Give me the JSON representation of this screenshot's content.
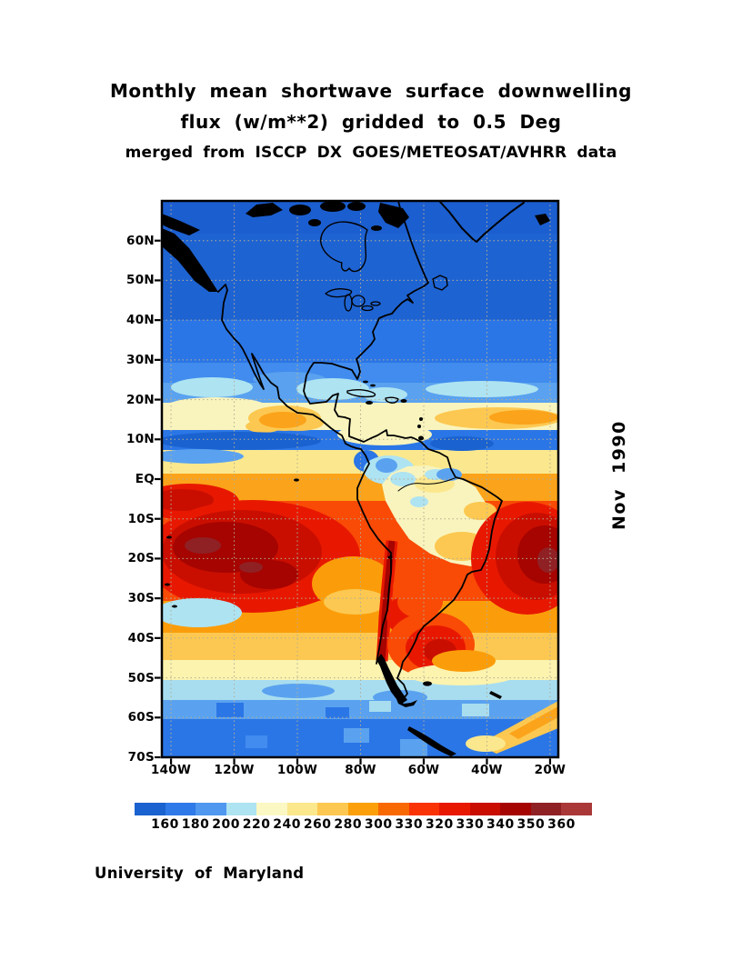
{
  "title": {
    "line1": "Monthly mean shortwave surface downwelling",
    "line2": "flux (w/m**2) gridded to 0.5 Deg",
    "line3": "merged from ISCCP DX GOES/METEOSAT/AVHRR data"
  },
  "side_label": "Nov 1990",
  "credit": "University of Maryland",
  "map": {
    "lat_ticks": [
      {
        "label": "60N",
        "deg": 60
      },
      {
        "label": "50N",
        "deg": 50
      },
      {
        "label": "40N",
        "deg": 40
      },
      {
        "label": "30N",
        "deg": 30
      },
      {
        "label": "20N",
        "deg": 20
      },
      {
        "label": "10N",
        "deg": 10
      },
      {
        "label": "EQ",
        "deg": 0
      },
      {
        "label": "10S",
        "deg": -10
      },
      {
        "label": "20S",
        "deg": -20
      },
      {
        "label": "30S",
        "deg": -30
      },
      {
        "label": "40S",
        "deg": -40
      },
      {
        "label": "50S",
        "deg": -50
      },
      {
        "label": "60S",
        "deg": -60
      },
      {
        "label": "70S",
        "deg": -70
      }
    ],
    "lon_ticks": [
      {
        "label": "140W",
        "deg": 140
      },
      {
        "label": "120W",
        "deg": 120
      },
      {
        "label": "100W",
        "deg": 100
      },
      {
        "label": "80W",
        "deg": 80
      },
      {
        "label": "60W",
        "deg": 60
      },
      {
        "label": "40W",
        "deg": 40
      },
      {
        "label": "20W",
        "deg": 20
      }
    ]
  },
  "colorbar": {
    "tick_labels": [
      "160",
      "180",
      "200",
      "220",
      "240",
      "260",
      "280",
      "300",
      "330",
      "320",
      "330",
      "340",
      "350",
      "360"
    ],
    "colors": [
      "#1a62cf",
      "#2e7ae8",
      "#4f97ef",
      "#aee3f2",
      "#fbf8c3",
      "#fbe78c",
      "#fcc851",
      "#fba00a",
      "#f96903",
      "#f93306",
      "#e81800",
      "#c90e00",
      "#a50400",
      "#8f2125",
      "#aa3839"
    ]
  },
  "chart_data": {
    "type": "heatmap",
    "title": "Monthly mean shortwave surface downwelling flux (w/m**2) gridded to 0.5 Deg",
    "subtitle": "merged from ISCCP DX GOES/METEOSAT/AVHRR data",
    "period": "Nov 1990",
    "units": "w/m**2",
    "xlabel_ticks": [
      "140W",
      "120W",
      "100W",
      "80W",
      "60W",
      "40W",
      "20W"
    ],
    "ylabel_ticks": [
      "60N",
      "50N",
      "40N",
      "30N",
      "20N",
      "10N",
      "EQ",
      "10S",
      "20S",
      "30S",
      "40S",
      "50S",
      "60S",
      "70S"
    ],
    "x_range_lon": [
      "143W",
      "17W"
    ],
    "y_range_lat": [
      "70N",
      "70S"
    ],
    "grid": "dotted at 10 deg latitude / 20 deg longitude",
    "legend_position": "horizontal colorbar below map",
    "colorbar_levels": [
      160,
      180,
      200,
      220,
      240,
      260,
      280,
      300,
      330,
      320,
      330,
      340,
      350,
      360
    ],
    "colorbar_colors": [
      "#1a62cf",
      "#2e7ae8",
      "#4f97ef",
      "#aee3f2",
      "#fbf8c3",
      "#fbe78c",
      "#fcc851",
      "#fba00a",
      "#f96903",
      "#f93306",
      "#e81800",
      "#c90e00",
      "#a50400",
      "#8f2125",
      "#aa3839"
    ],
    "regions_summary": [
      {
        "area": "North America and North Atlantic 30N-70N",
        "flux": "below 180 (dark blue)"
      },
      {
        "area": "Subtropical band 19N-25N",
        "flux": "200-220 (light blue / pale cyan)"
      },
      {
        "area": "Band 13N-19N incl. Mexico",
        "flux": "220-300 (pale yellow with orange over Mexico)"
      },
      {
        "area": "ITCZ band ~7N-13N eastern Pacific and off Venezuela",
        "flux": "below 180 (dark blue)"
      },
      {
        "area": "South Pacific subtropical high 5S-25S west of 90W",
        "flux": "330-360 (dark red maximum)"
      },
      {
        "area": "South Atlantic 8S-25S east of 35W",
        "flux": "330-360 (dark red maximum)"
      },
      {
        "area": "Andes ridge 15S-40S",
        "flux": "330-350 (narrow dark red stripe)"
      },
      {
        "area": "Amazon basin",
        "flux": "220-280 (pale yellow / gold with cyan patches)"
      },
      {
        "area": "Argentina 35S-48S",
        "flux": "300-340 (red patch)"
      },
      {
        "area": "45S-52S belt",
        "flux": "220-260 (cream)"
      },
      {
        "area": "Southern Ocean 52S-70S",
        "flux": "160-220 (cyan to blue, blocky)"
      },
      {
        "area": "Far southeast corner near Antarctic Peninsula",
        "flux": "240-280 (gold band)"
      }
    ]
  }
}
